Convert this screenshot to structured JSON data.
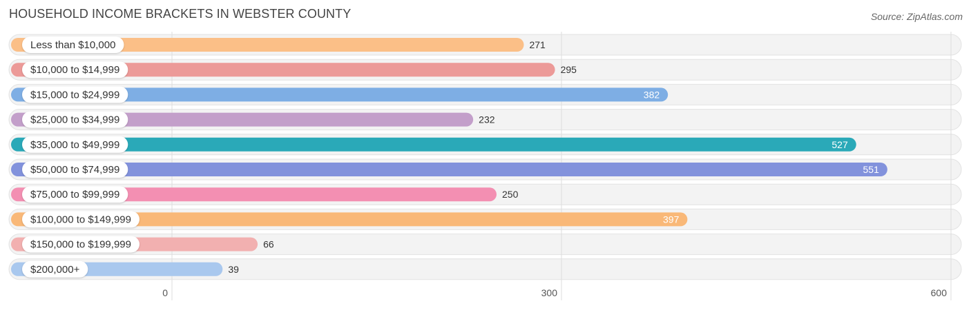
{
  "header": {
    "title": "HOUSEHOLD INCOME BRACKETS IN WEBSTER COUNTY",
    "source": "Source: ZipAtlas.com"
  },
  "chart_data": {
    "type": "bar",
    "orientation": "horizontal",
    "title": "HOUSEHOLD INCOME BRACKETS IN WEBSTER COUNTY",
    "xlabel": "",
    "ylabel": "",
    "categories": [
      "Less than $10,000",
      "$10,000 to $14,999",
      "$15,000 to $24,999",
      "$25,000 to $34,999",
      "$35,000 to $49,999",
      "$50,000 to $74,999",
      "$75,000 to $99,999",
      "$100,000 to $149,999",
      "$150,000 to $199,999",
      "$200,000+"
    ],
    "values": [
      271,
      295,
      382,
      232,
      527,
      551,
      250,
      397,
      66,
      39
    ],
    "value_labels": [
      "271",
      "295",
      "382",
      "232",
      "527",
      "551",
      "250",
      "397",
      "66",
      "39"
    ],
    "colors": [
      "#fbbf87",
      "#ec9a98",
      "#7eaee4",
      "#c39fca",
      "#2aa9b8",
      "#8292dc",
      "#f38fb2",
      "#f9b878",
      "#f2b0b0",
      "#a9c8ee"
    ],
    "xlim": [
      0,
      600
    ],
    "xticks": [
      0,
      300,
      600
    ],
    "xtick_labels": [
      "0",
      "300",
      "600"
    ],
    "grid": true,
    "legend": "none"
  }
}
